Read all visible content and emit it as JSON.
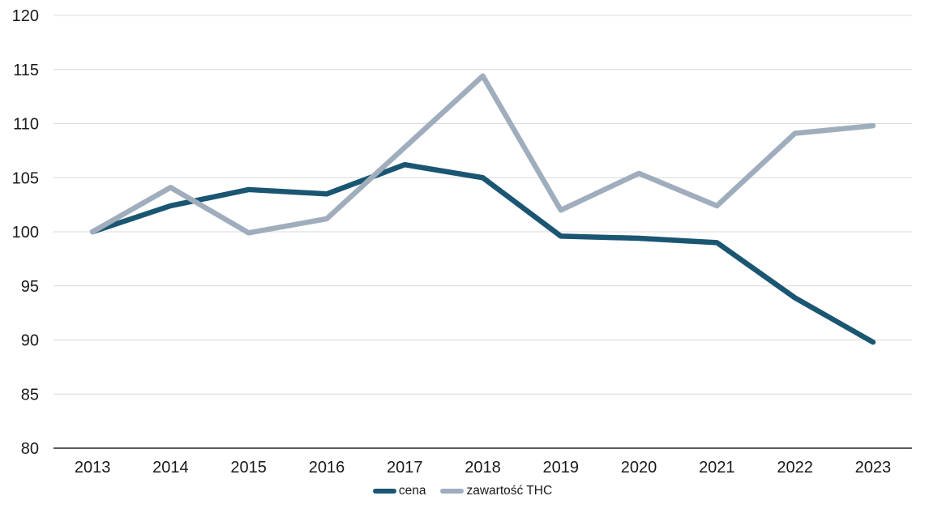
{
  "chart_data": {
    "type": "line",
    "x": [
      "2013",
      "2014",
      "2015",
      "2016",
      "2017",
      "2018",
      "2019",
      "2020",
      "2021",
      "2022",
      "2023"
    ],
    "series": [
      {
        "name": "cena",
        "color": "#1a5672",
        "values": [
          100,
          102.4,
          103.9,
          103.5,
          106.2,
          105.0,
          99.6,
          99.4,
          99.0,
          93.9,
          89.8
        ]
      },
      {
        "name": "zawartość THC",
        "color": "#9fadbd",
        "values": [
          100,
          104.1,
          99.9,
          101.2,
          107.8,
          114.4,
          102.0,
          105.4,
          102.4,
          109.1,
          109.8
        ]
      }
    ],
    "title": "",
    "xlabel": "",
    "ylabel": "",
    "ylim": [
      80,
      120
    ],
    "yticks": [
      80,
      85,
      90,
      95,
      100,
      105,
      110,
      115,
      120
    ],
    "grid": "horizontal",
    "legend_position": "bottom",
    "colors": {
      "background": "#ffffff",
      "gridline": "#d9d9d9",
      "axis_line": "#262626",
      "tick_label": "#1a1a1a"
    }
  }
}
